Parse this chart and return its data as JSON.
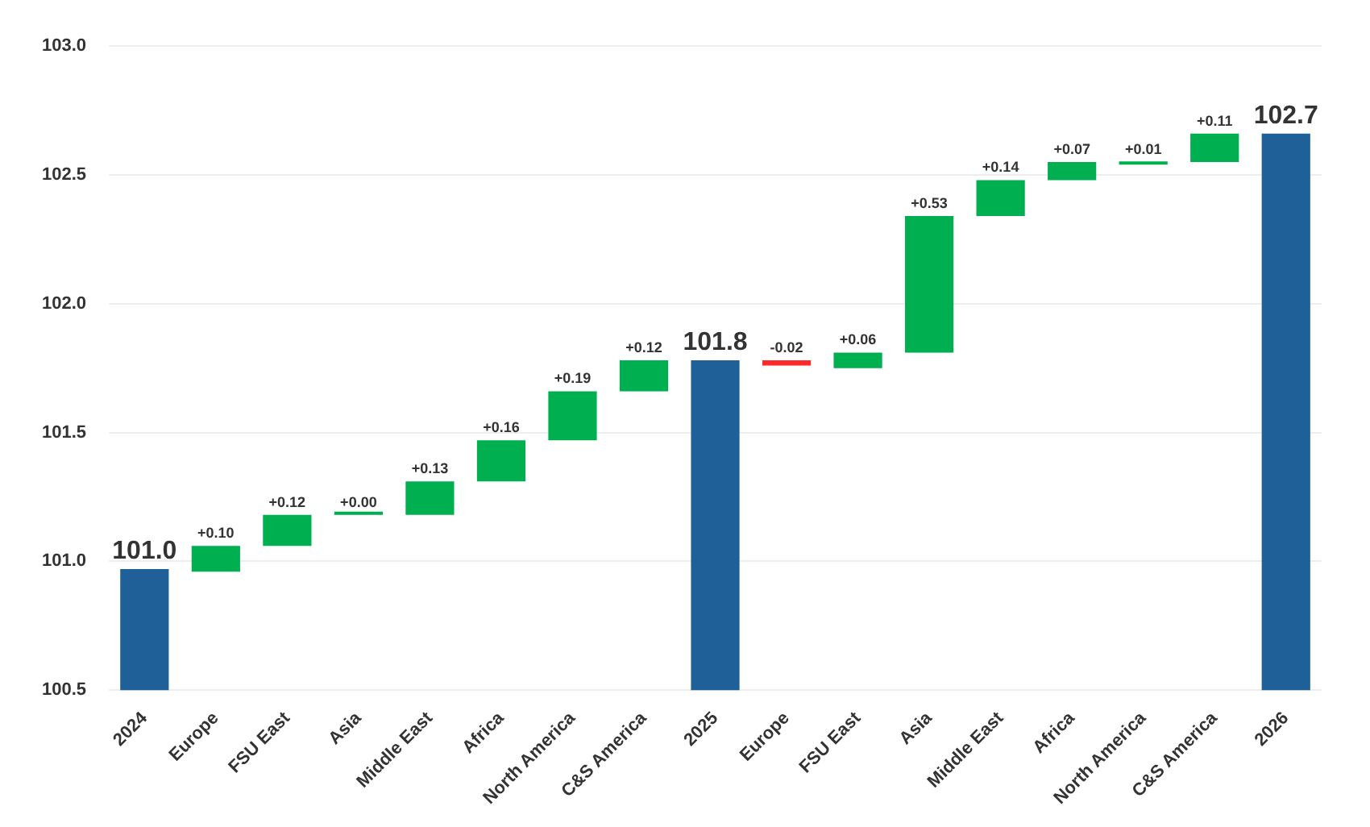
{
  "chart_data": {
    "type": "bar",
    "categories": [
      "2024",
      "Europe",
      "FSU East",
      "Asia",
      "Middle East",
      "Africa",
      "North America",
      "C&S America",
      "2025",
      "Europe",
      "FSU East",
      "Asia",
      "Middle East",
      "Africa",
      "North America",
      "C&S America",
      "2026"
    ],
    "values": [
      100.97,
      0.1,
      0.12,
      0.0,
      0.13,
      0.16,
      0.19,
      0.12,
      101.78,
      -0.02,
      0.06,
      0.53,
      0.14,
      0.07,
      0.01,
      0.11,
      102.66
    ],
    "base": [
      null,
      100.96,
      101.06,
      101.18,
      101.18,
      101.31,
      101.47,
      101.66,
      null,
      101.78,
      101.75,
      101.81,
      102.34,
      102.48,
      102.54,
      102.55,
      null
    ],
    "colors": [
      "#1f6098",
      "#00b050",
      "#00b050",
      "#00b050",
      "#00b050",
      "#00b050",
      "#00b050",
      "#00b050",
      "#1f6098",
      "#ff2a2a",
      "#00b050",
      "#00b050",
      "#00b050",
      "#00b050",
      "#00b050",
      "#00b050",
      "#1f6098"
    ],
    "value_labels": [
      "101.0",
      "+0.10",
      "+0.12",
      "+0.00",
      "+0.13",
      "+0.16",
      "+0.19",
      "+0.12",
      "101.8",
      "-0.02",
      "+0.06",
      "+0.53",
      "+0.14",
      "+0.07",
      "+0.01",
      "+0.11",
      "102.7"
    ],
    "ylim": [
      100.5,
      103.0
    ],
    "yticks": [
      {
        "value": 100.5,
        "label": "100.5"
      },
      {
        "value": 101,
        "label": "101.0"
      },
      {
        "value": 101.5,
        "label": "101.5"
      },
      {
        "value": 102,
        "label": "102.0"
      },
      {
        "value": 102.5,
        "label": "102.5"
      },
      {
        "value": 103,
        "label": "103.0"
      }
    ],
    "grid": "y",
    "legend": false
  }
}
